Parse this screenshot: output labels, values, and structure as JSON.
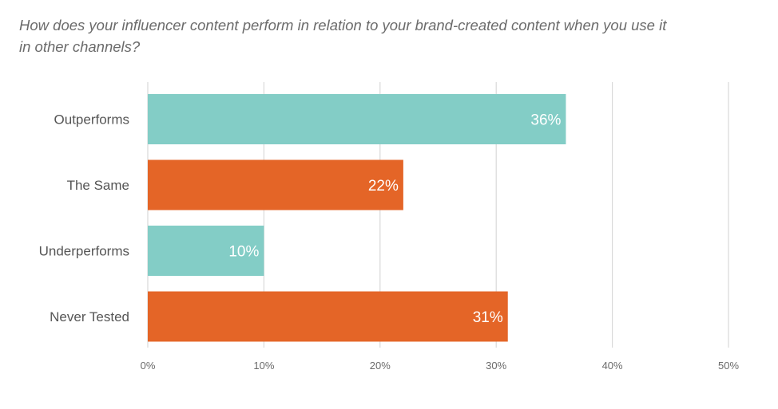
{
  "chart_data": {
    "type": "bar",
    "orientation": "horizontal",
    "title": "How does your influencer content perform in relation to your brand-created content when you use it in other channels?",
    "categories": [
      "Outperforms",
      "The Same",
      "Underperforms",
      "Never Tested"
    ],
    "values": [
      36,
      22,
      10,
      31
    ],
    "value_labels": [
      "36%",
      "22%",
      "10%",
      "31%"
    ],
    "bar_colors": [
      "#83cdc6",
      "#e46527",
      "#83cdc6",
      "#e46527"
    ],
    "xlim": [
      0,
      50
    ],
    "xticks": [
      0,
      10,
      20,
      30,
      40,
      50
    ],
    "xtick_labels": [
      "0%",
      "10%",
      "20%",
      "30%",
      "40%",
      "50%"
    ],
    "grid": true,
    "xlabel": "",
    "ylabel": ""
  },
  "colors": {
    "teal": "#83cdc6",
    "orange": "#e46527",
    "grid": "#d9d9d9",
    "text": "#555555"
  }
}
